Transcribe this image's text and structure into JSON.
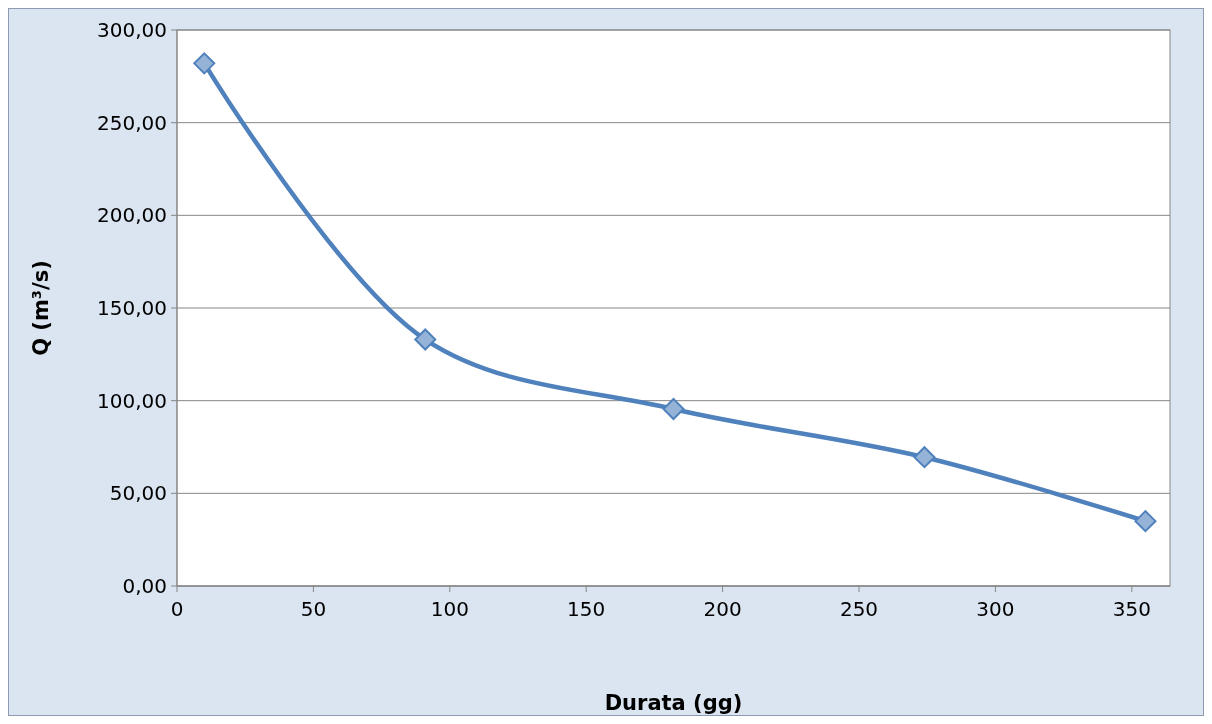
{
  "chart_data": {
    "type": "line",
    "xlabel": "Durata (gg)",
    "ylabel": "Q (m³/s)",
    "x": [
      10,
      91,
      182,
      274,
      355
    ],
    "series": [
      {
        "color": "#4f81bd",
        "values": [
          282,
          133,
          95.5,
          69.5,
          35
        ]
      }
    ],
    "xlim": [
      0,
      364
    ],
    "xticks": [
      0,
      50,
      100,
      150,
      200,
      250,
      300,
      350
    ],
    "ylim": [
      0,
      300
    ],
    "yticks": [
      {
        "value": 0,
        "label": "0,00"
      },
      {
        "value": 50,
        "label": "50,00"
      },
      {
        "value": 100,
        "label": "100,00"
      },
      {
        "value": 150,
        "label": "150,00"
      },
      {
        "value": 200,
        "label": "200,00"
      },
      {
        "value": 250,
        "label": "250,00"
      },
      {
        "value": 300,
        "label": "300,00"
      }
    ],
    "grid": "y",
    "marker": "diamond",
    "line_style": "solid"
  }
}
